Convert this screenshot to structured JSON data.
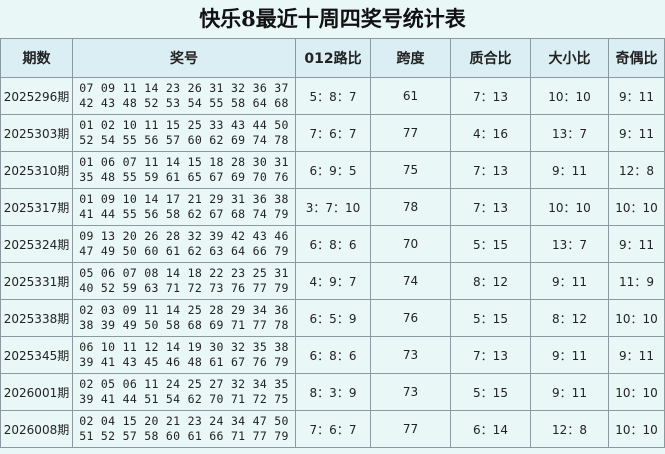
{
  "title": "快乐8最近十周四奖号统计表",
  "table": {
    "headers": [
      "期数",
      "奖号",
      "012路比",
      "跨度",
      "质合比",
      "大小比",
      "奇偶比"
    ],
    "rows": [
      [
        "2025296期",
        [
          "07 09 11 14 23 26 31 32 36 37",
          "42 43 48 52 53 54 55 58 64 68"
        ],
        "5：8：7",
        61,
        "7：13",
        "10：10",
        "9：11"
      ],
      [
        "2025303期",
        [
          "01 02 10 11 15 25 33 43 44 50",
          "52 54 55 56 57 60 62 69 74 78"
        ],
        "7：6：7",
        77,
        "4：16",
        "13：7",
        "9：11"
      ],
      [
        "2025310期",
        [
          "01 06 07 11 14 15 18 28 30 31",
          "35 48 55 59 61 65 67 69 70 76"
        ],
        "6：9：5",
        75,
        "7：13",
        "9：11",
        "12：8"
      ],
      [
        "2025317期",
        [
          "01 09 10 14 17 21 29 31 36 38",
          "41 44 55 56 58 62 67 68 74 79"
        ],
        "3：7：10",
        78,
        "7：13",
        "10：10",
        "10：10"
      ],
      [
        "2025324期",
        [
          "09 13 20 26 28 32 39 42 43 46",
          "47 49 50 60 61 62 63 64 66 79"
        ],
        "6：8：6",
        70,
        "5：15",
        "13：7",
        "9：11"
      ],
      [
        "2025331期",
        [
          "05 06 07 08 14 18 22 23 25 31",
          "40 52 59 63 71 72 73 76 77 79"
        ],
        "4：9：7",
        74,
        "8：12",
        "9：11",
        "11：9"
      ],
      [
        "2025338期",
        [
          "02 03 09 11 14 25 28 29 34 36",
          "38 39 49 50 58 68 69 71 77 78"
        ],
        "6：5：9",
        76,
        "5：15",
        "8：12",
        "10：10"
      ],
      [
        "2025345期",
        [
          "06 10 11 12 14 19 30 32 35 38",
          "39 41 43 45 46 48 61 67 76 79"
        ],
        "6：8：6",
        73,
        "7：13",
        "9：11",
        "9：11"
      ],
      [
        "2026001期",
        [
          "02 05 06 11 24 25 27 32 34 35",
          "39 41 44 51 54 62 70 71 72 75"
        ],
        "8：3：9",
        73,
        "5：15",
        "9：11",
        "10：10"
      ],
      [
        "2026008期",
        [
          "02 04 15 20 21 23 24 34 47 50",
          "51 52 57 58 60 61 66 71 77 79"
        ],
        "7：6：7",
        77,
        "6：14",
        "12：8",
        "10：10"
      ]
    ]
  }
}
